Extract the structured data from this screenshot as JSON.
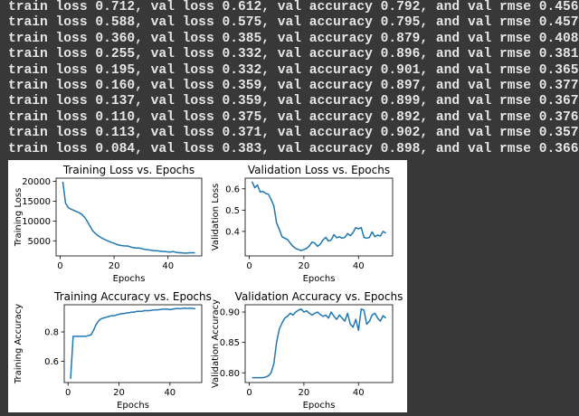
{
  "console": {
    "lines": [
      "train loss 0.712, val loss 0.612, val accuracy 0.792, and val rmse 0.456",
      "train loss 0.588, val loss 0.575, val accuracy 0.795, and val rmse 0.457",
      "train loss 0.360, val loss 0.385, val accuracy 0.879, and val rmse 0.408",
      "train loss 0.255, val loss 0.332, val accuracy 0.896, and val rmse 0.381",
      "train loss 0.195, val loss 0.332, val accuracy 0.901, and val rmse 0.365",
      "train loss 0.160, val loss 0.359, val accuracy 0.897, and val rmse 0.377",
      "train loss 0.137, val loss 0.359, val accuracy 0.899, and val rmse 0.367",
      "train loss 0.110, val loss 0.375, val accuracy 0.892, and val rmse 0.376",
      "train loss 0.113, val loss 0.371, val accuracy 0.902, and val rmse 0.357",
      "train loss 0.084, val loss 0.383, val accuracy 0.898, and val rmse 0.366"
    ]
  },
  "colors": {
    "series": "#1f77b4",
    "console_bg": "#383838",
    "console_text": "#e6e6e6"
  },
  "chart_data": [
    {
      "type": "line",
      "title": "Training Loss vs. Epochs",
      "xlabel": "Epochs",
      "ylabel": "Training Loss",
      "xlim": [
        -1.5,
        52.5
      ],
      "ylim": [
        1200,
        20800
      ],
      "xticks": [
        0,
        20,
        40
      ],
      "yticks": [
        5000,
        10000,
        15000,
        20000
      ],
      "ytick_labels": [
        "5000",
        "10000",
        "15000",
        "20000"
      ],
      "x": [
        1,
        2,
        3,
        4,
        5,
        6,
        7,
        8,
        9,
        10,
        11,
        12,
        13,
        14,
        15,
        16,
        17,
        18,
        19,
        20,
        21,
        22,
        23,
        24,
        25,
        26,
        27,
        28,
        29,
        30,
        31,
        32,
        33,
        34,
        35,
        36,
        37,
        38,
        39,
        40,
        41,
        42,
        43,
        44,
        45,
        46,
        47,
        48,
        49,
        50
      ],
      "values": [
        19900,
        14500,
        13400,
        13000,
        12700,
        12400,
        12100,
        11700,
        11000,
        10000,
        8800,
        7600,
        6900,
        6300,
        5900,
        5500,
        5200,
        4900,
        4600,
        4400,
        4100,
        3900,
        3800,
        3700,
        3700,
        3500,
        3300,
        3200,
        3200,
        3100,
        2900,
        2800,
        2700,
        2600,
        2500,
        2500,
        2400,
        2300,
        2300,
        2200,
        2200,
        2300,
        2100,
        2000,
        2000,
        1900,
        1900,
        2000,
        2000,
        2000
      ]
    },
    {
      "type": "line",
      "title": "Validation Loss vs. Epochs",
      "xlabel": "Epochs",
      "ylabel": "Validation Loss",
      "xlim": [
        -1.5,
        52.5
      ],
      "ylim": [
        0.285,
        0.65
      ],
      "xticks": [
        0,
        20,
        40
      ],
      "yticks": [
        0.4,
        0.5,
        0.6
      ],
      "ytick_labels": [
        "0.4",
        "0.5",
        "0.6"
      ],
      "x": [
        1,
        2,
        3,
        4,
        5,
        6,
        7,
        8,
        9,
        10,
        11,
        12,
        13,
        14,
        15,
        16,
        17,
        18,
        19,
        20,
        21,
        22,
        23,
        24,
        25,
        26,
        27,
        28,
        29,
        30,
        31,
        32,
        33,
        34,
        35,
        36,
        37,
        38,
        39,
        40,
        41,
        42,
        43,
        44,
        45,
        46,
        47,
        48,
        49,
        50
      ],
      "values": [
        0.634,
        0.605,
        0.618,
        0.585,
        0.588,
        0.578,
        0.575,
        0.55,
        0.52,
        0.44,
        0.41,
        0.375,
        0.368,
        0.362,
        0.345,
        0.33,
        0.32,
        0.315,
        0.31,
        0.315,
        0.32,
        0.332,
        0.35,
        0.345,
        0.33,
        0.34,
        0.36,
        0.372,
        0.355,
        0.36,
        0.385,
        0.37,
        0.375,
        0.368,
        0.372,
        0.39,
        0.38,
        0.395,
        0.418,
        0.412,
        0.418,
        0.372,
        0.368,
        0.372,
        0.398,
        0.375,
        0.383,
        0.378,
        0.4,
        0.392
      ]
    },
    {
      "type": "line",
      "title": "Training Accuracy vs. Epochs",
      "xlabel": "Epochs",
      "ylabel": "Training Accuracy",
      "xlim": [
        -1.5,
        52.5
      ],
      "ylim": [
        0.455,
        0.985
      ],
      "xticks": [
        0,
        20,
        40
      ],
      "yticks": [
        0.6,
        0.8
      ],
      "ytick_labels": [
        "0.6",
        "0.8"
      ],
      "x": [
        1,
        2,
        3,
        4,
        5,
        6,
        7,
        8,
        9,
        10,
        11,
        12,
        13,
        14,
        15,
        16,
        17,
        18,
        19,
        20,
        21,
        22,
        23,
        24,
        25,
        26,
        27,
        28,
        29,
        30,
        31,
        32,
        33,
        34,
        35,
        36,
        37,
        38,
        39,
        40,
        41,
        42,
        43,
        44,
        45,
        46,
        47,
        48,
        49,
        50
      ],
      "values": [
        0.48,
        0.77,
        0.77,
        0.77,
        0.77,
        0.77,
        0.77,
        0.775,
        0.78,
        0.81,
        0.85,
        0.875,
        0.89,
        0.895,
        0.9,
        0.905,
        0.91,
        0.91,
        0.915,
        0.92,
        0.925,
        0.925,
        0.93,
        0.93,
        0.935,
        0.935,
        0.94,
        0.94,
        0.94,
        0.945,
        0.945,
        0.945,
        0.948,
        0.95,
        0.95,
        0.952,
        0.955,
        0.955,
        0.955,
        0.952,
        0.955,
        0.958,
        0.96,
        0.958,
        0.96,
        0.962,
        0.96,
        0.962,
        0.96,
        0.958
      ]
    },
    {
      "type": "line",
      "title": "Validation Accuracy vs. Epochs",
      "xlabel": "Epochs",
      "ylabel": "Validation Accuracy",
      "xlim": [
        -1.5,
        52.5
      ],
      "ylim": [
        0.784,
        0.912
      ],
      "xticks": [
        0,
        20,
        40
      ],
      "yticks": [
        0.8,
        0.85,
        0.9
      ],
      "ytick_labels": [
        "0.80",
        "0.85",
        "0.90"
      ],
      "x": [
        1,
        2,
        3,
        4,
        5,
        6,
        7,
        8,
        9,
        10,
        11,
        12,
        13,
        14,
        15,
        16,
        17,
        18,
        19,
        20,
        21,
        22,
        23,
        24,
        25,
        26,
        27,
        28,
        29,
        30,
        31,
        32,
        33,
        34,
        35,
        36,
        37,
        38,
        39,
        40,
        41,
        42,
        43,
        44,
        45,
        46,
        47,
        48,
        49,
        50
      ],
      "values": [
        0.792,
        0.792,
        0.792,
        0.792,
        0.792,
        0.793,
        0.795,
        0.8,
        0.815,
        0.85,
        0.872,
        0.882,
        0.89,
        0.893,
        0.898,
        0.895,
        0.9,
        0.903,
        0.905,
        0.9,
        0.902,
        0.898,
        0.895,
        0.898,
        0.9,
        0.896,
        0.893,
        0.895,
        0.89,
        0.9,
        0.893,
        0.888,
        0.895,
        0.89,
        0.885,
        0.898,
        0.88,
        0.875,
        0.888,
        0.87,
        0.905,
        0.903,
        0.88,
        0.885,
        0.895,
        0.898,
        0.89,
        0.885,
        0.894,
        0.89
      ]
    }
  ]
}
